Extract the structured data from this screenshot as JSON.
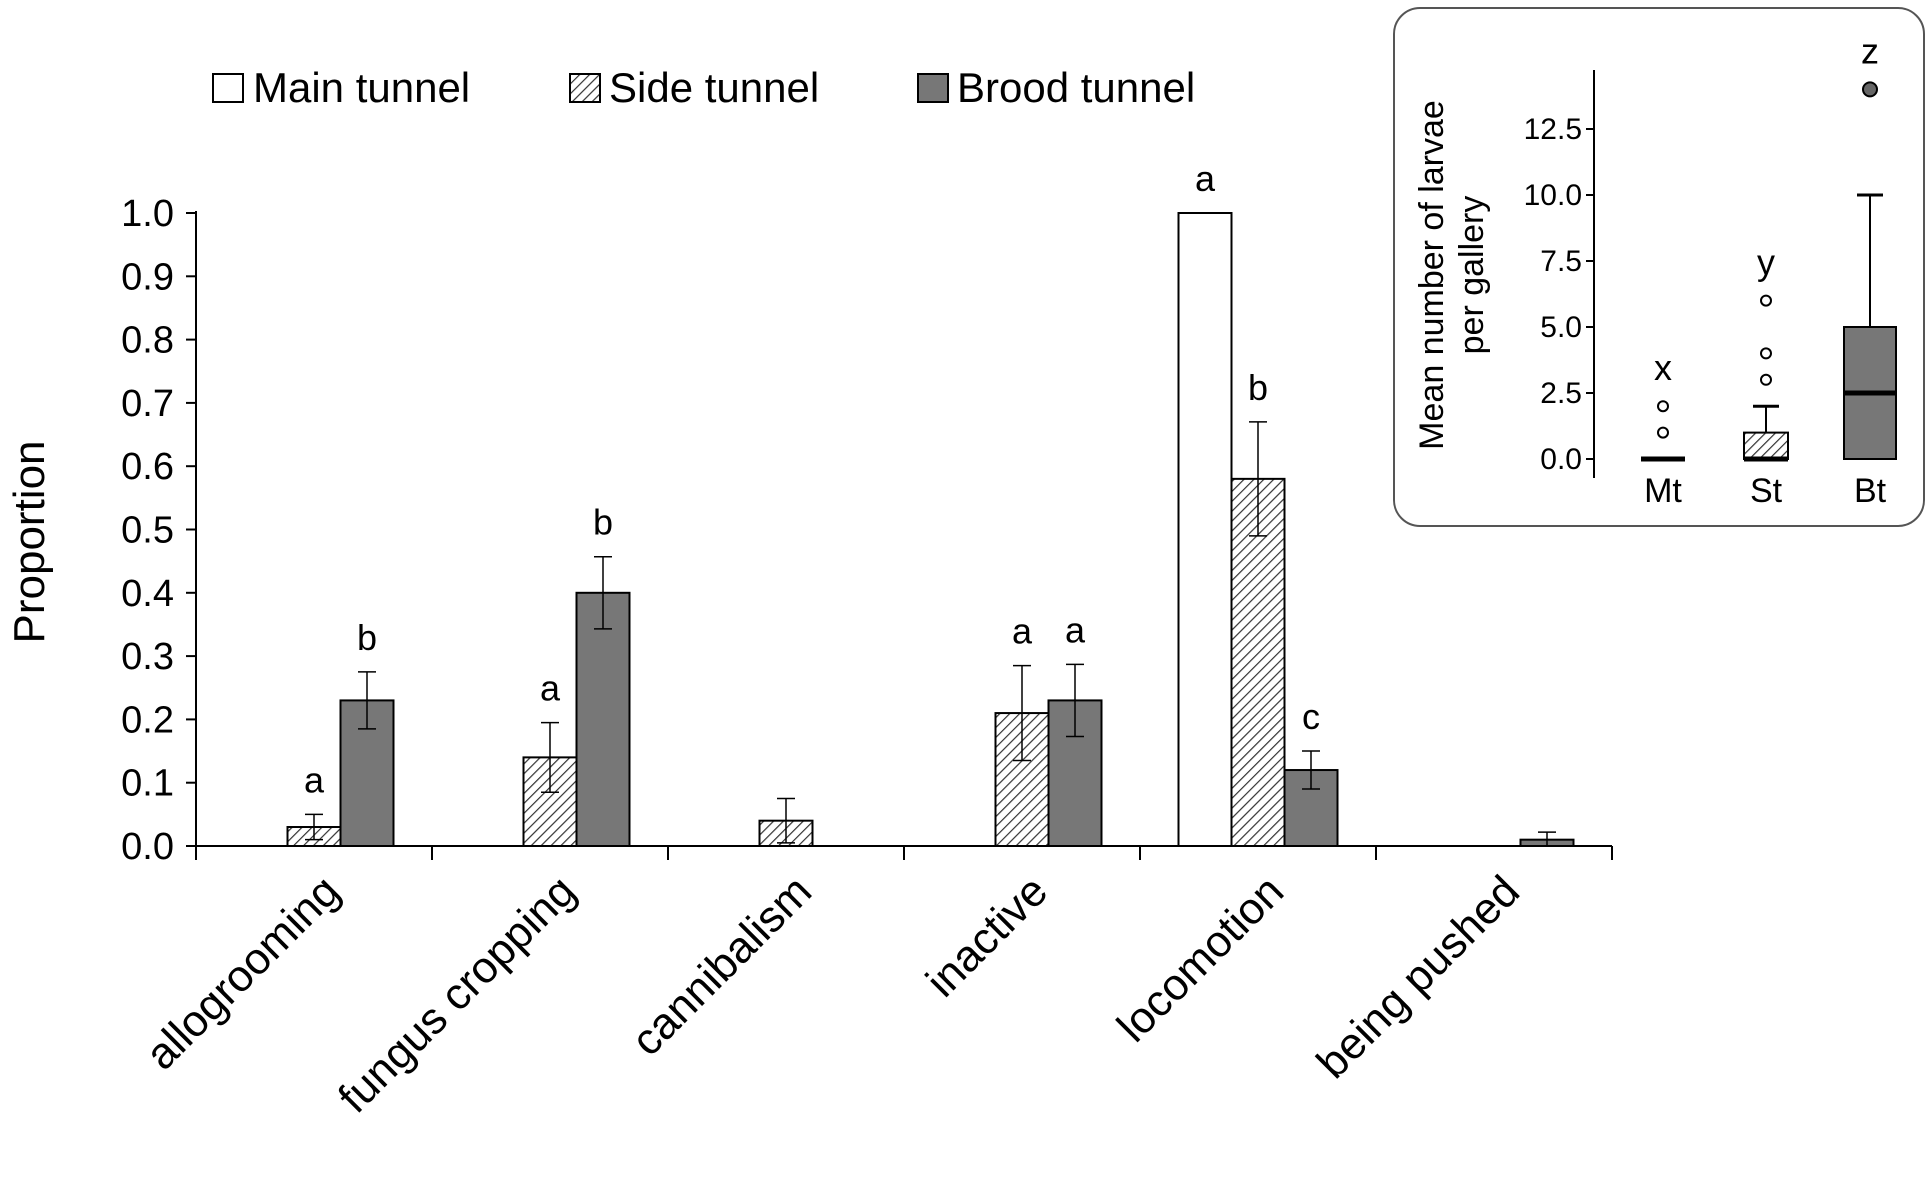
{
  "chart_data": [
    {
      "type": "bar",
      "title": "",
      "xlabel": "",
      "ylabel": "Proportion",
      "ylim": [
        0,
        1.0
      ],
      "yticks": [
        "0.0",
        "0.1",
        "0.2",
        "0.3",
        "0.4",
        "0.5",
        "0.6",
        "0.7",
        "0.8",
        "0.9",
        "1.0"
      ],
      "grid": false,
      "legend_position": "top",
      "categories": [
        "allogrooming",
        "fungus cropping",
        "cannibalism",
        "inactive",
        "locomotion",
        "being pushed"
      ],
      "series": [
        {
          "name": "Main tunnel",
          "fill": "white",
          "values": [
            null,
            null,
            null,
            null,
            1.0,
            null
          ],
          "errors": [
            null,
            null,
            null,
            null,
            null,
            null
          ],
          "letters": [
            null,
            null,
            null,
            null,
            "a",
            null
          ]
        },
        {
          "name": "Side tunnel",
          "fill": "hatched",
          "values": [
            0.03,
            0.14,
            0.04,
            0.21,
            0.58,
            null
          ],
          "errors": [
            0.02,
            0.055,
            0.035,
            0.075,
            0.09,
            null
          ],
          "letters": [
            "a",
            "a",
            null,
            "a",
            "b",
            null
          ]
        },
        {
          "name": "Brood tunnel",
          "fill": "gray",
          "values": [
            0.23,
            0.4,
            null,
            0.23,
            0.12,
            0.01
          ],
          "errors": [
            0.045,
            0.057,
            null,
            0.057,
            0.03,
            0.012
          ],
          "letters": [
            "b",
            "b",
            null,
            "a",
            "c",
            null
          ]
        }
      ]
    },
    {
      "type": "box",
      "ylabel_line1": "Mean number of larvae",
      "ylabel_line2": "per gallery",
      "ylim": [
        0,
        15
      ],
      "yticks": [
        "0.0",
        "2.5",
        "5.0",
        "7.5",
        "10.0",
        "12.5"
      ],
      "categories": [
        "Mt",
        "St",
        "Bt"
      ],
      "letters": [
        "x",
        "y",
        "z"
      ],
      "boxes": [
        {
          "min": 0,
          "q1": 0,
          "median": 0,
          "q3": 0,
          "max": 0,
          "outliers": [
            1.0,
            2.0
          ],
          "fill": "white"
        },
        {
          "min": 0,
          "q1": 0,
          "median": 0,
          "q3": 1.0,
          "max": 2.0,
          "outliers": [
            3.0,
            4.0,
            6.0
          ],
          "fill": "hatched"
        },
        {
          "min": 0,
          "q1": 0,
          "median": 2.5,
          "q3": 5.0,
          "max": 10.0,
          "outliers": [
            14.0
          ],
          "fill": "gray"
        }
      ]
    }
  ],
  "colors": {
    "gray": "#777777",
    "outline": "#000000",
    "panel_border": "#555555"
  }
}
